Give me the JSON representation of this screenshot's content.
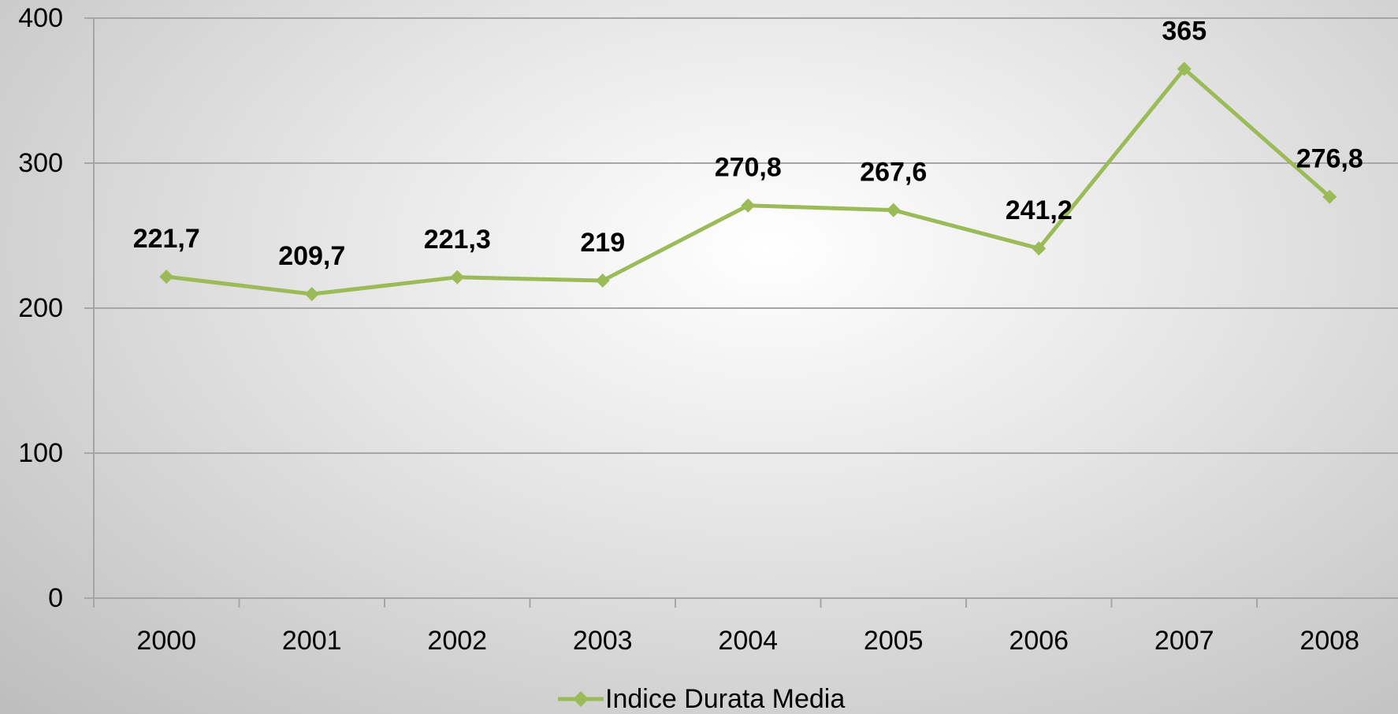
{
  "chart_data": {
    "type": "line",
    "categories": [
      "2000",
      "2001",
      "2002",
      "2003",
      "2004",
      "2005",
      "2006",
      "2007",
      "2008"
    ],
    "series": [
      {
        "name": "Indice Durata Media",
        "color": "#9bbb59",
        "values": [
          221.7,
          209.7,
          221.3,
          219,
          270.8,
          267.6,
          241.2,
          365,
          276.8
        ],
        "value_labels": [
          "221,7",
          "209,7",
          "221,3",
          "219",
          "270,8",
          "267,6",
          "241,2",
          "365",
          "276,8"
        ]
      }
    ],
    "ylim": [
      0,
      400
    ],
    "yticks": [
      0,
      100,
      200,
      300,
      400
    ],
    "grid": true,
    "legend": "bottom"
  }
}
